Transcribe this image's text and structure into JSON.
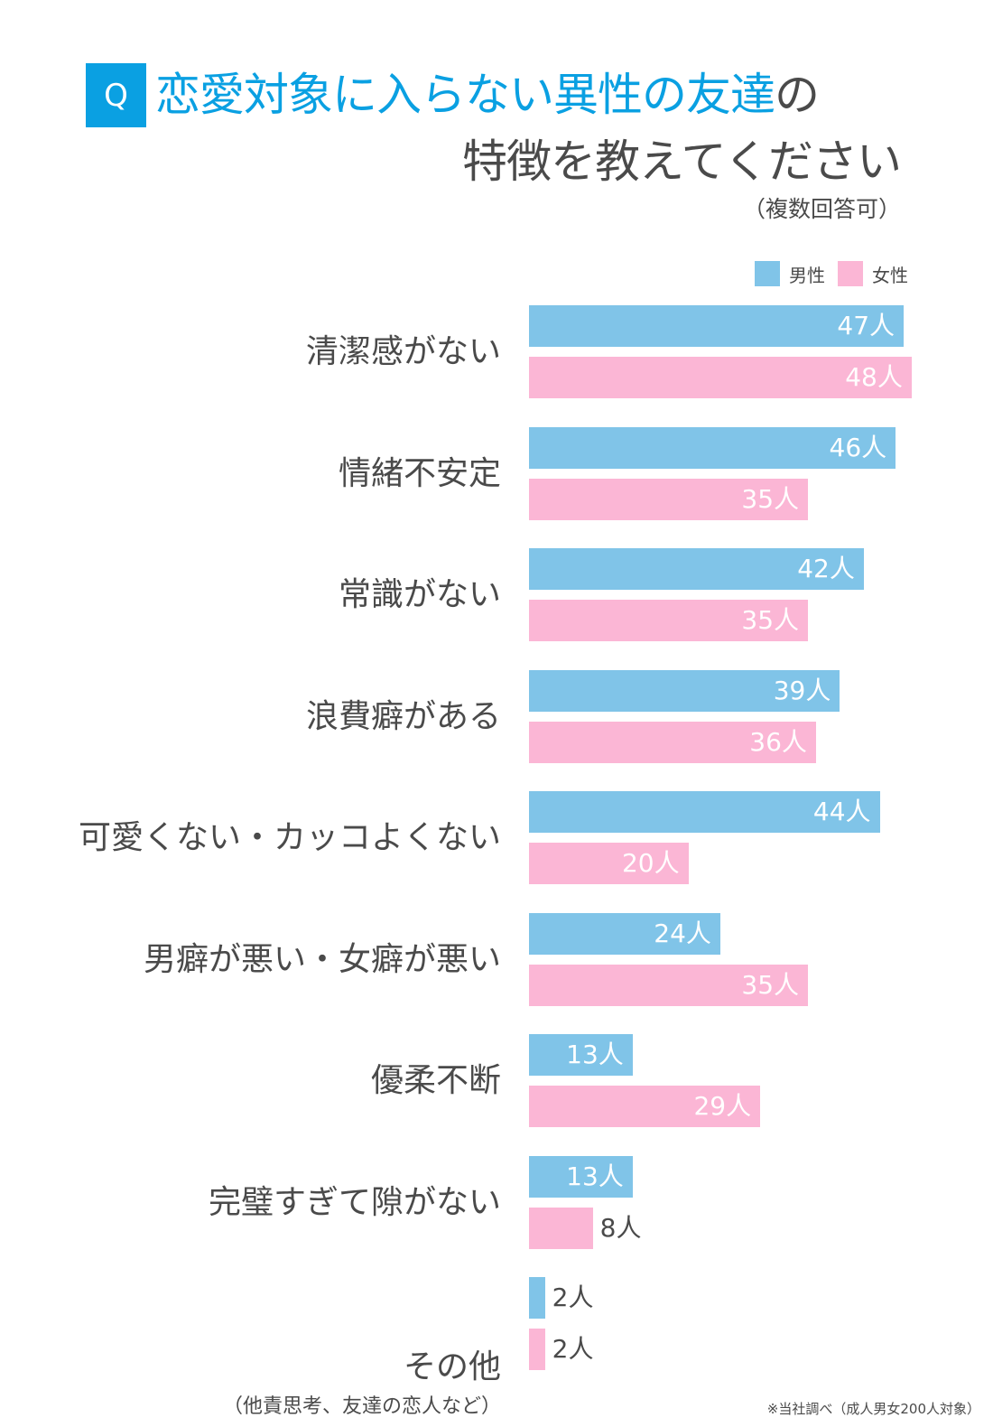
{
  "header": {
    "badge": "Q",
    "title_highlight": "恋愛対象に入らない異性の友達",
    "title_tail": "の",
    "title_line2": "特徴を教えてください",
    "note": "（複数回答可）"
  },
  "footnote": "※当社調べ（成人男女200人対象）",
  "colors": {
    "male": "#80c4e8",
    "female": "#fbb6d5",
    "accent": "#0aa0e2"
  },
  "chart_data": {
    "type": "bar",
    "orientation": "horizontal",
    "title": "恋愛対象に入らない異性の友達の特徴を教えてください",
    "legend": [
      "男性",
      "女性"
    ],
    "legend_position": "top-right",
    "unit": "人",
    "categories": [
      "清潔感がない",
      "情緒不安定",
      "常識がない",
      "浪費癖がある",
      "可愛くない・カッコよくない",
      "男癖が悪い・女癖が悪い",
      "優柔不断",
      "完璧すぎて隙がない",
      "その他"
    ],
    "category_notes": [
      "",
      "",
      "",
      "",
      "",
      "",
      "",
      "",
      "（他責思考、友達の恋人など）"
    ],
    "series": [
      {
        "name": "男性",
        "values": [
          47,
          46,
          42,
          39,
          44,
          24,
          13,
          13,
          2
        ],
        "labels": [
          "47人",
          "46人",
          "42人",
          "39人",
          "44人",
          "24人",
          "13人",
          "13人",
          "2人"
        ]
      },
      {
        "name": "女性",
        "values": [
          48,
          35,
          35,
          36,
          20,
          35,
          29,
          8,
          2
        ],
        "labels": [
          "48人",
          "35人",
          "35人",
          "36人",
          "20人",
          "35人",
          "29人",
          "8人",
          "2人"
        ]
      }
    ]
  }
}
